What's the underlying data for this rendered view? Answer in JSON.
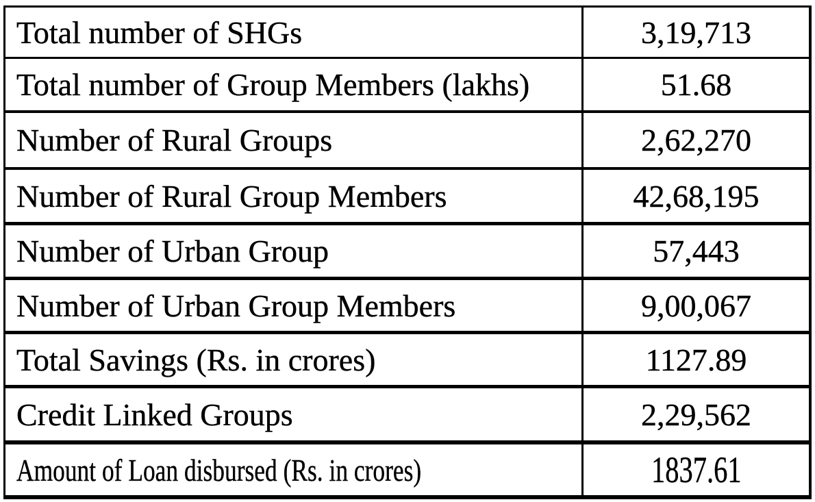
{
  "table": {
    "rows": [
      {
        "label": "Total number of SHGs",
        "value": "3,19,713"
      },
      {
        "label": "Total number of Group Members (lakhs)",
        "value": "51.68"
      },
      {
        "label": "Number of Rural Groups",
        "value": "2,62,270"
      },
      {
        "label": "Number of Rural Group Members",
        "value": "42,68,195"
      },
      {
        "label": "Number of Urban Group",
        "value": "57,443"
      },
      {
        "label": "Number of Urban Group Members",
        "value": "9,00,067"
      },
      {
        "label": "Total Savings (Rs. in crores)",
        "value": "1127.89"
      },
      {
        "label": "Credit Linked Groups",
        "value": "2,29,562"
      },
      {
        "label": "Amount of Loan disbursed (Rs. in crores)",
        "value": "1837.61"
      }
    ]
  }
}
